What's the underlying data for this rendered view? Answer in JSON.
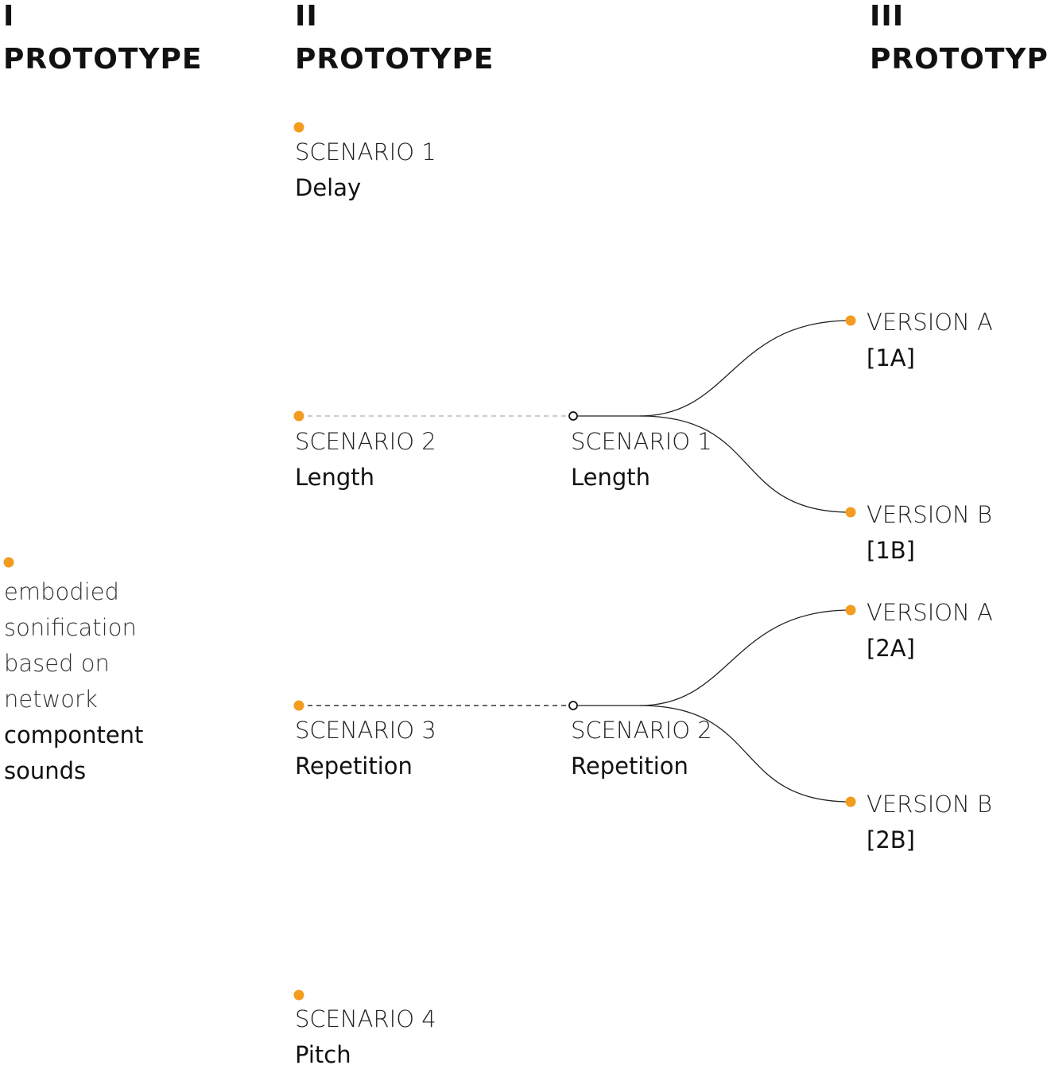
{
  "colors": {
    "accent": "#f39c1f",
    "line": "#222222",
    "dashed": "#bbbbbb"
  },
  "columns": [
    {
      "numeral": "I",
      "title": "PROTOTYPE"
    },
    {
      "numeral": "II",
      "title": "PROTOTYPE"
    },
    {
      "numeral": "III",
      "title": "PROTOTYPE"
    }
  ],
  "prototype1": {
    "description": [
      "embodied",
      "sonification",
      "based on",
      "network"
    ],
    "emphasis": [
      "compontent",
      "sounds"
    ]
  },
  "prototype2": {
    "scenarios": [
      {
        "label": "SCENARIO 1",
        "name": "Delay"
      },
      {
        "label": "SCENARIO 2",
        "name": "Length"
      },
      {
        "label": "SCENARIO 3",
        "name": "Repetition"
      },
      {
        "label": "SCENARIO 4",
        "name": "Pitch"
      }
    ]
  },
  "prototype3": {
    "scenarios": [
      {
        "label": "SCENARIO 1",
        "name": "Length"
      },
      {
        "label": "SCENARIO 2",
        "name": "Repetition"
      }
    ],
    "versions": [
      {
        "label": "VERSION A",
        "code": "[1A]"
      },
      {
        "label": "VERSION B",
        "code": "[1B]"
      },
      {
        "label": "VERSION A",
        "code": "[2A]"
      },
      {
        "label": "VERSION B",
        "code": "[2B]"
      }
    ]
  }
}
